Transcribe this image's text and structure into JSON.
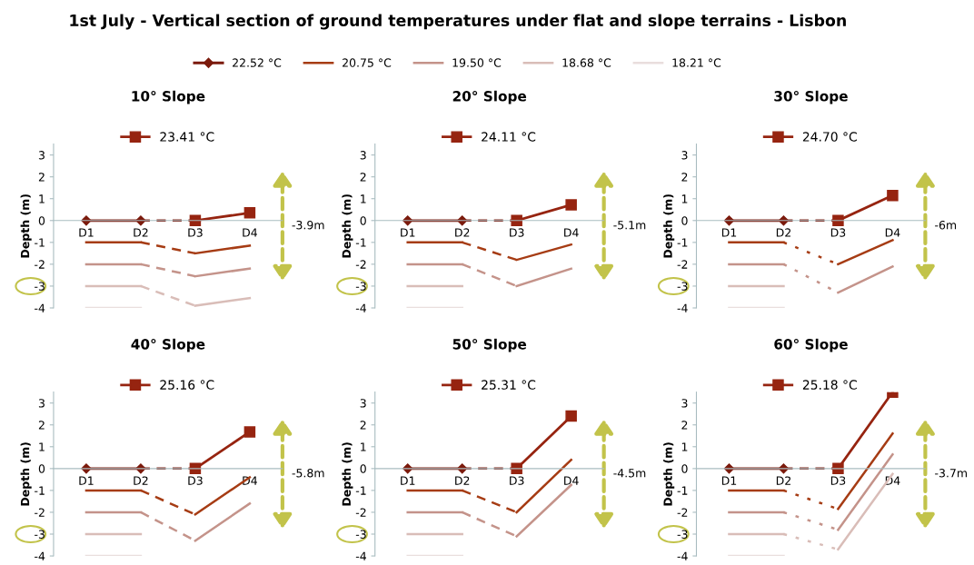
{
  "chart_data": [
    {
      "type": "line",
      "title": "10° Slope",
      "ylabel": "Depth (m)",
      "legend": "top",
      "categories": [
        "D1",
        "D2",
        "D3",
        "D4"
      ],
      "ylim": [
        -4,
        3.5
      ],
      "yticks": [
        -4,
        -3,
        -2,
        -1,
        0,
        1,
        2,
        3
      ],
      "annotations": [
        "1st July - Vertical section of ground temperatures under flat and slope terrains - Lisbon",
        "-3.9m"
      ],
      "series": [
        {
          "name": "22.52 °C",
          "color": "#7b1a0c",
          "values": [
            0,
            0,
            null,
            null
          ],
          "marker": "diamond",
          "line_style": "solid"
        },
        {
          "color": "#7b1a0c",
          "values": [
            null,
            0,
            0,
            null
          ],
          "line_style": "dashed"
        },
        {
          "name": "23.41 °C",
          "color": "#962410",
          "values": [
            null,
            null,
            0,
            0.35
          ],
          "marker": "square",
          "line_style": "solid"
        },
        {
          "name": "20.75 °C",
          "color": "#a63c14",
          "values": [
            -1,
            -1,
            null,
            null
          ],
          "line_style": "solid"
        },
        {
          "color": "#a63c14",
          "values": [
            null,
            -1,
            -1.5,
            null
          ],
          "line_style": "dashed"
        },
        {
          "color": "#a63c14",
          "values": [
            null,
            null,
            -1.5,
            -1.15
          ],
          "line_style": "solid"
        },
        {
          "name": "19.50 °C",
          "color": "#c4938a",
          "values": [
            -2,
            -2,
            null,
            null
          ],
          "line_style": "solid"
        },
        {
          "color": "#c4938a",
          "values": [
            null,
            -2,
            -2.55,
            null
          ],
          "line_style": "dashed"
        },
        {
          "color": "#c4938a",
          "values": [
            null,
            null,
            -2.55,
            -2.2
          ],
          "line_style": "solid"
        },
        {
          "name": "18.68 °C",
          "color": "#d9bdb8",
          "values": [
            -3,
            -3,
            null,
            null
          ],
          "line_style": "solid"
        },
        {
          "color": "#d9bdb8",
          "values": [
            null,
            -3,
            -3.9,
            null
          ],
          "line_style": "dashed"
        },
        {
          "color": "#d9bdb8",
          "values": [
            null,
            null,
            -3.9,
            -3.55
          ],
          "line_style": "solid"
        },
        {
          "name": "18.21 °C",
          "color": "#e9dedd",
          "values": [
            -4,
            -4,
            null,
            null
          ],
          "line_style": "solid"
        }
      ]
    },
    {
      "type": "line",
      "title": "20° Slope",
      "ylabel": "Depth (m)",
      "legend": "top",
      "categories": [
        "D1",
        "D2",
        "D3",
        "D4"
      ],
      "ylim": [
        -4,
        3.5
      ],
      "yticks": [
        -4,
        -3,
        -2,
        -1,
        0,
        1,
        2,
        3
      ],
      "annotations": [
        "-5.1m"
      ],
      "series": [
        {
          "color": "#7b1a0c",
          "values": [
            0,
            0,
            null,
            null
          ],
          "marker": "diamond",
          "line_style": "solid"
        },
        {
          "color": "#7b1a0c",
          "values": [
            null,
            0,
            0,
            null
          ],
          "line_style": "dashed"
        },
        {
          "name": "24.11 °C",
          "color": "#962410",
          "values": [
            null,
            null,
            0,
            0.72
          ],
          "marker": "square",
          "line_style": "solid"
        },
        {
          "color": "#a63c14",
          "values": [
            -1,
            -1,
            null,
            null
          ],
          "line_style": "solid"
        },
        {
          "color": "#a63c14",
          "values": [
            null,
            -1,
            -1.8,
            null
          ],
          "line_style": "dashed"
        },
        {
          "color": "#a63c14",
          "values": [
            null,
            null,
            -1.8,
            -1.1
          ],
          "line_style": "solid"
        },
        {
          "color": "#c4938a",
          "values": [
            -2,
            -2,
            null,
            null
          ],
          "line_style": "solid"
        },
        {
          "color": "#c4938a",
          "values": [
            null,
            -2,
            -3,
            null
          ],
          "line_style": "dashed"
        },
        {
          "color": "#c4938a",
          "values": [
            null,
            null,
            -3,
            -2.2
          ],
          "line_style": "solid"
        },
        {
          "color": "#d9bdb8",
          "values": [
            -3,
            -3,
            null,
            null
          ],
          "line_style": "solid"
        },
        {
          "color": "#e9dedd",
          "values": [
            -4,
            -4,
            null,
            null
          ],
          "line_style": "solid"
        }
      ]
    },
    {
      "type": "line",
      "title": "30° Slope",
      "ylabel": "Depth (m)",
      "legend": "top",
      "categories": [
        "D1",
        "D2",
        "D3",
        "D4"
      ],
      "ylim": [
        -4,
        3.5
      ],
      "yticks": [
        -4,
        -3,
        -2,
        -1,
        0,
        1,
        2,
        3
      ],
      "annotations": [
        "-6m"
      ],
      "series": [
        {
          "color": "#7b1a0c",
          "values": [
            0,
            0,
            null,
            null
          ],
          "marker": "diamond",
          "line_style": "solid"
        },
        {
          "color": "#7b1a0c",
          "values": [
            null,
            0,
            0,
            null
          ],
          "line_style": "dashed"
        },
        {
          "name": "24.70 °C",
          "color": "#962410",
          "values": [
            null,
            null,
            0,
            1.15
          ],
          "marker": "square",
          "line_style": "solid"
        },
        {
          "color": "#a63c14",
          "values": [
            -1,
            -1,
            null,
            null
          ],
          "line_style": "solid"
        },
        {
          "color": "#a63c14",
          "values": [
            null,
            -1,
            -2,
            null
          ],
          "line_style": "dotted"
        },
        {
          "color": "#a63c14",
          "values": [
            null,
            null,
            -2,
            -0.9
          ],
          "line_style": "solid"
        },
        {
          "color": "#c4938a",
          "values": [
            -2,
            -2,
            null,
            null
          ],
          "line_style": "solid"
        },
        {
          "color": "#c4938a",
          "values": [
            null,
            -2,
            -3.3,
            null
          ],
          "line_style": "dotted"
        },
        {
          "color": "#c4938a",
          "values": [
            null,
            null,
            -3.3,
            -2.1
          ],
          "line_style": "solid"
        },
        {
          "color": "#d9bdb8",
          "values": [
            -3,
            -3,
            null,
            null
          ],
          "line_style": "solid"
        },
        {
          "color": "#e9dedd",
          "values": [
            -4,
            -4,
            null,
            null
          ],
          "line_style": "solid"
        }
      ]
    },
    {
      "type": "line",
      "title": "40° Slope",
      "ylabel": "Depth (m)",
      "legend": "top",
      "categories": [
        "D1",
        "D2",
        "D3",
        "D4"
      ],
      "ylim": [
        -4,
        3.5
      ],
      "yticks": [
        -4,
        -3,
        -2,
        -1,
        0,
        1,
        2,
        3
      ],
      "annotations": [
        "-5.8m"
      ],
      "series": [
        {
          "color": "#7b1a0c",
          "values": [
            0,
            0,
            null,
            null
          ],
          "marker": "diamond",
          "line_style": "solid"
        },
        {
          "color": "#7b1a0c",
          "values": [
            null,
            0,
            0,
            null
          ],
          "line_style": "dashed"
        },
        {
          "name": "25.16 °C",
          "color": "#962410",
          "values": [
            null,
            null,
            0,
            1.68
          ],
          "marker": "square",
          "line_style": "solid"
        },
        {
          "color": "#a63c14",
          "values": [
            -1,
            -1,
            null,
            null
          ],
          "line_style": "solid"
        },
        {
          "color": "#a63c14",
          "values": [
            null,
            -1,
            -2.1,
            null
          ],
          "line_style": "dashed"
        },
        {
          "color": "#a63c14",
          "values": [
            null,
            null,
            -2.1,
            -0.4
          ],
          "line_style": "solid"
        },
        {
          "color": "#c4938a",
          "values": [
            -2,
            -2,
            null,
            null
          ],
          "line_style": "solid"
        },
        {
          "color": "#c4938a",
          "values": [
            null,
            -2,
            -3.3,
            null
          ],
          "line_style": "dashed"
        },
        {
          "color": "#c4938a",
          "values": [
            null,
            null,
            -3.3,
            -1.6
          ],
          "line_style": "solid"
        },
        {
          "color": "#d9bdb8",
          "values": [
            -3,
            -3,
            null,
            null
          ],
          "line_style": "solid"
        },
        {
          "color": "#e9dedd",
          "values": [
            -4,
            -4,
            null,
            null
          ],
          "line_style": "solid"
        }
      ]
    },
    {
      "type": "line",
      "title": "50° Slope",
      "ylabel": "Depth (m)",
      "legend": "top",
      "categories": [
        "D1",
        "D2",
        "D3",
        "D4"
      ],
      "ylim": [
        -4,
        3.5
      ],
      "yticks": [
        -4,
        -3,
        -2,
        -1,
        0,
        1,
        2,
        3
      ],
      "annotations": [
        "-4.5m"
      ],
      "series": [
        {
          "color": "#7b1a0c",
          "values": [
            0,
            0,
            null,
            null
          ],
          "marker": "diamond",
          "line_style": "solid"
        },
        {
          "color": "#7b1a0c",
          "values": [
            null,
            0,
            0,
            null
          ],
          "line_style": "dashed"
        },
        {
          "name": "25.31 °C",
          "color": "#962410",
          "values": [
            null,
            null,
            0,
            2.4
          ],
          "marker": "square",
          "line_style": "solid"
        },
        {
          "color": "#a63c14",
          "values": [
            -1,
            -1,
            null,
            null
          ],
          "line_style": "solid"
        },
        {
          "color": "#a63c14",
          "values": [
            null,
            -1,
            -2,
            null
          ],
          "line_style": "dashed"
        },
        {
          "color": "#a63c14",
          "values": [
            null,
            null,
            -2,
            0.4
          ],
          "line_style": "solid"
        },
        {
          "color": "#c4938a",
          "values": [
            -2,
            -2,
            null,
            null
          ],
          "line_style": "solid"
        },
        {
          "color": "#c4938a",
          "values": [
            null,
            -2,
            -3.1,
            null
          ],
          "line_style": "dashed"
        },
        {
          "color": "#c4938a",
          "values": [
            null,
            null,
            -3.1,
            -0.75
          ],
          "line_style": "solid"
        },
        {
          "color": "#d9bdb8",
          "values": [
            -3,
            -3,
            null,
            null
          ],
          "line_style": "solid"
        },
        {
          "color": "#e9dedd",
          "values": [
            -4,
            -4,
            null,
            null
          ],
          "line_style": "solid"
        }
      ]
    },
    {
      "type": "line",
      "title": "60° Slope",
      "ylabel": "Depth (m)",
      "legend": "top",
      "categories": [
        "D1",
        "D2",
        "D3",
        "D4"
      ],
      "ylim": [
        -4,
        3.5
      ],
      "yticks": [
        -4,
        -3,
        -2,
        -1,
        0,
        1,
        2,
        3
      ],
      "annotations": [
        "-3.7m"
      ],
      "series": [
        {
          "color": "#7b1a0c",
          "values": [
            0,
            0,
            null,
            null
          ],
          "marker": "diamond",
          "line_style": "solid"
        },
        {
          "color": "#7b1a0c",
          "values": [
            null,
            0,
            0,
            null
          ],
          "line_style": "dashed"
        },
        {
          "name": "25.18 °C",
          "color": "#962410",
          "values": [
            null,
            null,
            0,
            3.5
          ],
          "marker": "square",
          "line_style": "solid"
        },
        {
          "color": "#a63c14",
          "values": [
            -1,
            -1,
            null,
            null
          ],
          "line_style": "solid"
        },
        {
          "color": "#a63c14",
          "values": [
            null,
            -1,
            -1.85,
            null
          ],
          "line_style": "dotted"
        },
        {
          "color": "#a63c14",
          "values": [
            null,
            null,
            -1.85,
            1.6
          ],
          "line_style": "solid"
        },
        {
          "color": "#c4938a",
          "values": [
            -2,
            -2,
            null,
            null
          ],
          "line_style": "solid"
        },
        {
          "color": "#c4938a",
          "values": [
            null,
            -2,
            -2.8,
            null
          ],
          "line_style": "dotted"
        },
        {
          "color": "#c4938a",
          "values": [
            null,
            null,
            -2.8,
            0.65
          ],
          "line_style": "solid"
        },
        {
          "color": "#d9bdb8",
          "values": [
            -3,
            -3,
            null,
            null
          ],
          "line_style": "solid"
        },
        {
          "color": "#d9bdb8",
          "values": [
            null,
            -3,
            -3.7,
            null
          ],
          "line_style": "dotted"
        },
        {
          "color": "#d9bdb8",
          "values": [
            null,
            null,
            -3.7,
            -0.25
          ],
          "line_style": "solid"
        },
        {
          "color": "#e9dedd",
          "values": [
            -4,
            -4,
            null,
            null
          ],
          "line_style": "solid"
        }
      ]
    }
  ]
}
